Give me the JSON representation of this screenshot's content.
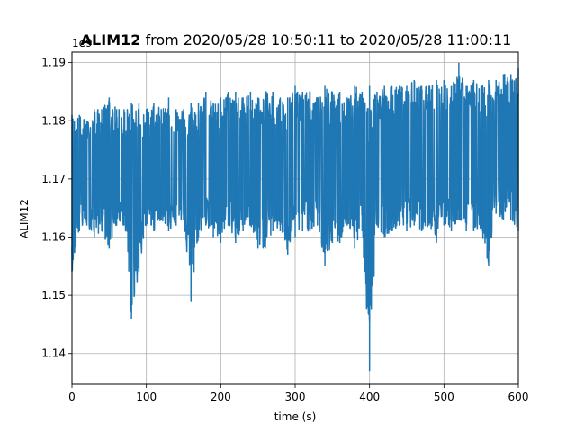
{
  "chart_data": {
    "type": "line",
    "title": {
      "bold": "ALIM12",
      "rest": " from 2020/05/28 10:50:11 to 2020/05/28 11:00:11"
    },
    "xlabel": "time (s)",
    "ylabel": "ALIM12",
    "offset_label": "1e9",
    "xlim": [
      0,
      600
    ],
    "ylim": [
      1.1347,
      1.1918
    ],
    "x_ticks": [
      0,
      100,
      200,
      300,
      400,
      500,
      600
    ],
    "x_tick_labels": [
      "0",
      "100",
      "200",
      "300",
      "400",
      "500",
      "600"
    ],
    "y_ticks": [
      1.14,
      1.15,
      1.16,
      1.17,
      1.18,
      1.19
    ],
    "y_tick_labels": [
      "1.14",
      "1.15",
      "1.16",
      "1.17",
      "1.18",
      "1.19"
    ],
    "grid": true,
    "series": [
      {
        "color": "#1f77b4",
        "x": [
          0,
          10,
          20,
          30,
          40,
          50,
          60,
          70,
          80,
          90,
          100,
          110,
          120,
          130,
          140,
          150,
          160,
          170,
          180,
          190,
          200,
          210,
          220,
          230,
          240,
          250,
          260,
          270,
          280,
          290,
          300,
          310,
          320,
          330,
          340,
          350,
          360,
          370,
          380,
          390,
          400,
          410,
          420,
          430,
          440,
          450,
          460,
          470,
          480,
          490,
          500,
          510,
          520,
          530,
          540,
          550,
          560,
          570,
          580,
          590,
          600
        ],
        "y_min": [
          1.154,
          1.161,
          1.162,
          1.16,
          1.161,
          1.158,
          1.162,
          1.162,
          1.146,
          1.154,
          1.162,
          1.161,
          1.163,
          1.161,
          1.162,
          1.163,
          1.149,
          1.16,
          1.162,
          1.16,
          1.159,
          1.162,
          1.159,
          1.161,
          1.162,
          1.158,
          1.158,
          1.161,
          1.161,
          1.157,
          1.16,
          1.161,
          1.161,
          1.162,
          1.155,
          1.159,
          1.159,
          1.162,
          1.158,
          1.161,
          1.137,
          1.162,
          1.16,
          1.161,
          1.162,
          1.161,
          1.162,
          1.161,
          1.162,
          1.159,
          1.162,
          1.161,
          1.163,
          1.161,
          1.161,
          1.161,
          1.155,
          1.164,
          1.163,
          1.163,
          1.161
        ],
        "y_max": [
          1.181,
          1.181,
          1.18,
          1.182,
          1.182,
          1.184,
          1.182,
          1.182,
          1.183,
          1.183,
          1.182,
          1.183,
          1.182,
          1.184,
          1.182,
          1.182,
          1.183,
          1.183,
          1.185,
          1.183,
          1.184,
          1.185,
          1.185,
          1.184,
          1.185,
          1.184,
          1.185,
          1.185,
          1.184,
          1.184,
          1.186,
          1.185,
          1.185,
          1.184,
          1.186,
          1.185,
          1.185,
          1.184,
          1.186,
          1.185,
          1.186,
          1.185,
          1.186,
          1.186,
          1.186,
          1.186,
          1.187,
          1.186,
          1.186,
          1.187,
          1.187,
          1.186,
          1.19,
          1.186,
          1.187,
          1.186,
          1.187,
          1.187,
          1.188,
          1.188,
          1.189
        ]
      }
    ]
  }
}
